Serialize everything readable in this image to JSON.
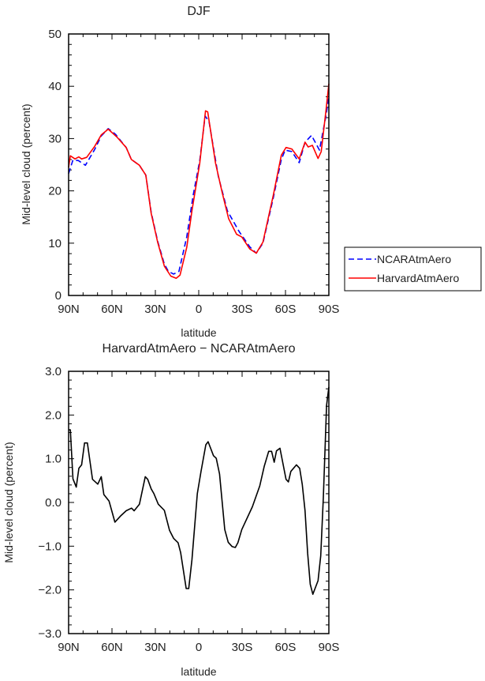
{
  "chart_data": [
    {
      "type": "line",
      "title": "DJF",
      "xlabel": "latitude",
      "ylabel": "Mid-level cloud (percent)",
      "xlim": [
        90,
        -90
      ],
      "ylim": [
        0,
        50
      ],
      "x_ticks": [
        90,
        60,
        30,
        0,
        -30,
        -60,
        -90
      ],
      "x_tick_labels": [
        "90N",
        "60N",
        "30N",
        "0",
        "30S",
        "60S",
        "90S"
      ],
      "y_ticks": [
        0,
        10,
        20,
        30,
        40,
        50
      ],
      "y_tick_labels": [
        "0",
        "10",
        "20",
        "30",
        "40",
        "50"
      ],
      "legend": {
        "placement": "outside-right",
        "entries": [
          "NCARAtmAero",
          "HarvardAtmAero"
        ]
      },
      "series": [
        {
          "name": "NCARAtmAero",
          "color": "#0000ff",
          "dash": "dashed",
          "x": [
            90,
            87,
            83.3,
            78.4,
            72,
            67.4,
            62.6,
            57.5,
            50.2,
            46.6,
            41,
            36.6,
            32.9,
            28.4,
            23.8,
            21,
            17.4,
            13.7,
            8.3,
            3.8,
            -0.7,
            -4.4,
            -7.1,
            -13.5,
            -19.8,
            -28,
            -35.3,
            -39.8,
            -44.4,
            -51.6,
            -57.1,
            -59.8,
            -64.4,
            -69.5,
            -73.5,
            -78,
            -83.5,
            -88,
            -90
          ],
          "y": [
            23.3,
            25.9,
            25.8,
            24.9,
            27.9,
            30.5,
            31.9,
            30.8,
            28.3,
            26.0,
            24.9,
            23.0,
            15.9,
            10.4,
            6.0,
            4.6,
            4.1,
            4.6,
            11.2,
            19.2,
            25.8,
            34.3,
            33.3,
            22.8,
            16.2,
            12.2,
            9.3,
            8.1,
            10.0,
            18.7,
            26.0,
            27.8,
            27.5,
            25.4,
            29.3,
            30.6,
            27.8,
            34.3,
            38.0
          ]
        },
        {
          "name": "HarvardAtmAero",
          "color": "#ff0000",
          "dash": "solid",
          "x": [
            90,
            88.8,
            85.6,
            82.9,
            81,
            77.5,
            72,
            67.4,
            62.6,
            56.6,
            50.2,
            46.6,
            41,
            36.6,
            32.9,
            28.4,
            23.8,
            19.3,
            15.6,
            12.9,
            8.3,
            4.7,
            -0.7,
            -4.7,
            -6.2,
            -11.6,
            -16.2,
            -20.7,
            -26.2,
            -29.8,
            -35.3,
            -39.8,
            -44.4,
            -51.6,
            -57.1,
            -60.4,
            -64.4,
            -69.5,
            -73.5,
            -75.7,
            -78.6,
            -82.5,
            -84.7,
            -88,
            -90
          ],
          "y": [
            24.5,
            26.7,
            26.1,
            26.5,
            26.1,
            26.4,
            28.5,
            30.7,
            31.8,
            30.3,
            28.3,
            26.0,
            24.9,
            23.0,
            15.7,
            10.2,
            5.6,
            3.7,
            3.3,
            3.9,
            9.2,
            16.2,
            25.3,
            35.3,
            35.1,
            25.3,
            19.7,
            14.7,
            11.7,
            11.2,
            8.9,
            8.1,
            10.2,
            19.2,
            26.8,
            28.3,
            28.0,
            26.1,
            29.3,
            28.4,
            28.7,
            26.2,
            27.5,
            35.3,
            40.5
          ]
        }
      ]
    },
    {
      "type": "line",
      "title": "HarvardAtmAero - NCARAtmAero",
      "xlabel": "latitude",
      "ylabel": "Mid-level cloud (percent)",
      "xlim": [
        90,
        -90
      ],
      "ylim": [
        -3.0,
        3.0
      ],
      "x_ticks": [
        90,
        60,
        30,
        0,
        -30,
        -60,
        -90
      ],
      "x_tick_labels": [
        "90N",
        "60N",
        "30N",
        "0",
        "30S",
        "60S",
        "90S"
      ],
      "y_ticks": [
        -3,
        -2,
        -1,
        0,
        1,
        2,
        3
      ],
      "y_tick_labels": [
        "-3.0",
        "-2.0",
        "-1.0",
        "0.0",
        "1.0",
        "2.0",
        "3.0"
      ],
      "series": [
        {
          "name": "HarvardAtmAero - NCARAtmAero",
          "color": "#000000",
          "dash": "solid",
          "x": [
            90,
            88.8,
            87,
            84.7,
            82.9,
            81,
            79,
            77,
            73.5,
            69.8,
            67.4,
            65.6,
            62,
            58,
            53.8,
            50.2,
            46.5,
            44.7,
            41,
            37,
            35.3,
            32.9,
            31,
            28,
            23.8,
            20.2,
            17.4,
            14.3,
            12.5,
            8.7,
            6.9,
            4.7,
            1,
            -1.6,
            -4.9,
            -6.5,
            -10.2,
            -12.1,
            -14.4,
            -18,
            -20.4,
            -23.1,
            -25.3,
            -27.1,
            -29.8,
            -37.1,
            -42.2,
            -45.3,
            -48.4,
            -50.4,
            -52.2,
            -53.8,
            -56.2,
            -60.4,
            -62,
            -63.7,
            -67.6,
            -69.8,
            -71.6,
            -73.5,
            -75.3,
            -77.1,
            -78.9,
            -82.5,
            -84.4,
            -86.2,
            -88.4,
            -90
          ],
          "y": [
            1.66,
            1.66,
            0.54,
            0.35,
            0.78,
            0.86,
            1.36,
            1.36,
            0.53,
            0.42,
            0.59,
            0.18,
            0.03,
            -0.45,
            -0.3,
            -0.19,
            -0.13,
            -0.19,
            -0.04,
            0.59,
            0.53,
            0.31,
            0.2,
            -0.04,
            -0.18,
            -0.64,
            -0.82,
            -0.92,
            -1.15,
            -1.97,
            -1.97,
            -1.31,
            0.2,
            0.71,
            1.32,
            1.39,
            1.07,
            1.01,
            0.65,
            -0.62,
            -0.91,
            -1.01,
            -1.03,
            -0.92,
            -0.62,
            -0.1,
            0.38,
            0.83,
            1.17,
            1.17,
            0.92,
            1.18,
            1.24,
            0.53,
            0.47,
            0.71,
            0.86,
            0.78,
            0.41,
            -0.19,
            -1.16,
            -1.87,
            -2.1,
            -1.79,
            -1.22,
            0.11,
            2.22,
            2.64
          ]
        }
      ]
    }
  ]
}
